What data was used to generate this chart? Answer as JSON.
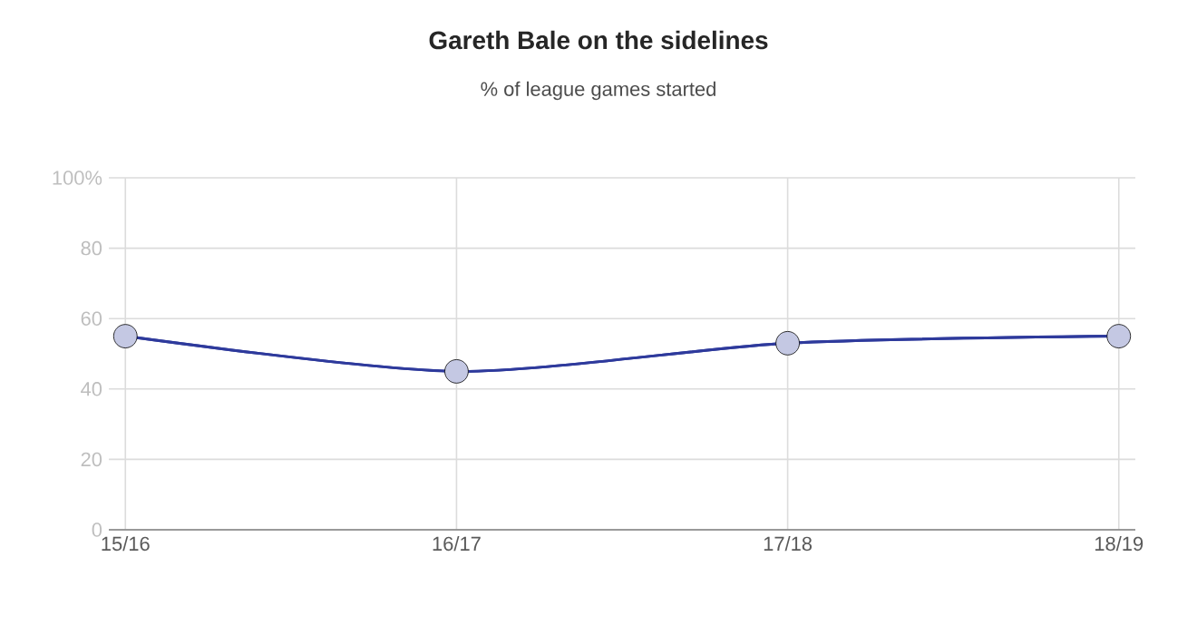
{
  "chart_data": {
    "type": "line",
    "title": "Gareth Bale on the sidelines",
    "subtitle": "% of league games started",
    "categories": [
      "15/16",
      "16/17",
      "17/18",
      "18/19"
    ],
    "values": [
      55,
      45,
      53,
      55
    ],
    "color": "#2e3a9c",
    "ylim": [
      0,
      100
    ],
    "yticks": [
      0,
      20,
      40,
      60,
      80,
      {
        "value": 100,
        "label": "100%"
      }
    ],
    "grid": true,
    "marker": "circle",
    "line_style": "solid"
  }
}
